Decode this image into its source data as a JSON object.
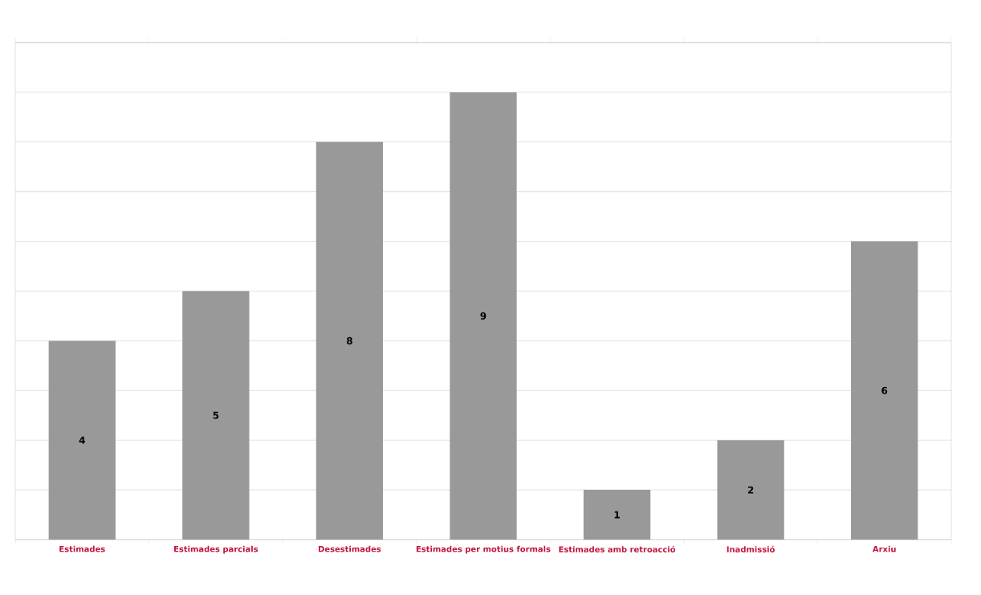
{
  "chart_data": {
    "type": "bar",
    "categories": [
      "Estimades",
      "Estimades parcials",
      "Desestimades",
      "Estimades per motius formals",
      "Estimades amb retroacció",
      "Inadmissió",
      "Arxiu"
    ],
    "values": [
      4,
      5,
      8,
      9,
      1,
      2,
      6
    ],
    "color": "#999999",
    "ylim": [
      0,
      10
    ],
    "yticks": [
      {
        "value": 0,
        "label": null
      },
      {
        "value": 1,
        "label": null
      },
      {
        "value": 2,
        "label": null
      },
      {
        "value": 3,
        "label": null
      },
      {
        "value": 4,
        "label": null
      },
      {
        "value": 5,
        "label": null
      },
      {
        "value": 6,
        "label": null
      },
      {
        "value": 7,
        "label": null
      },
      {
        "value": 8,
        "label": null
      },
      {
        "value": 9,
        "label": null
      },
      {
        "value": 10,
        "label": null
      }
    ],
    "tick_labels": "x",
    "grid": "y",
    "data_labels": true
  }
}
